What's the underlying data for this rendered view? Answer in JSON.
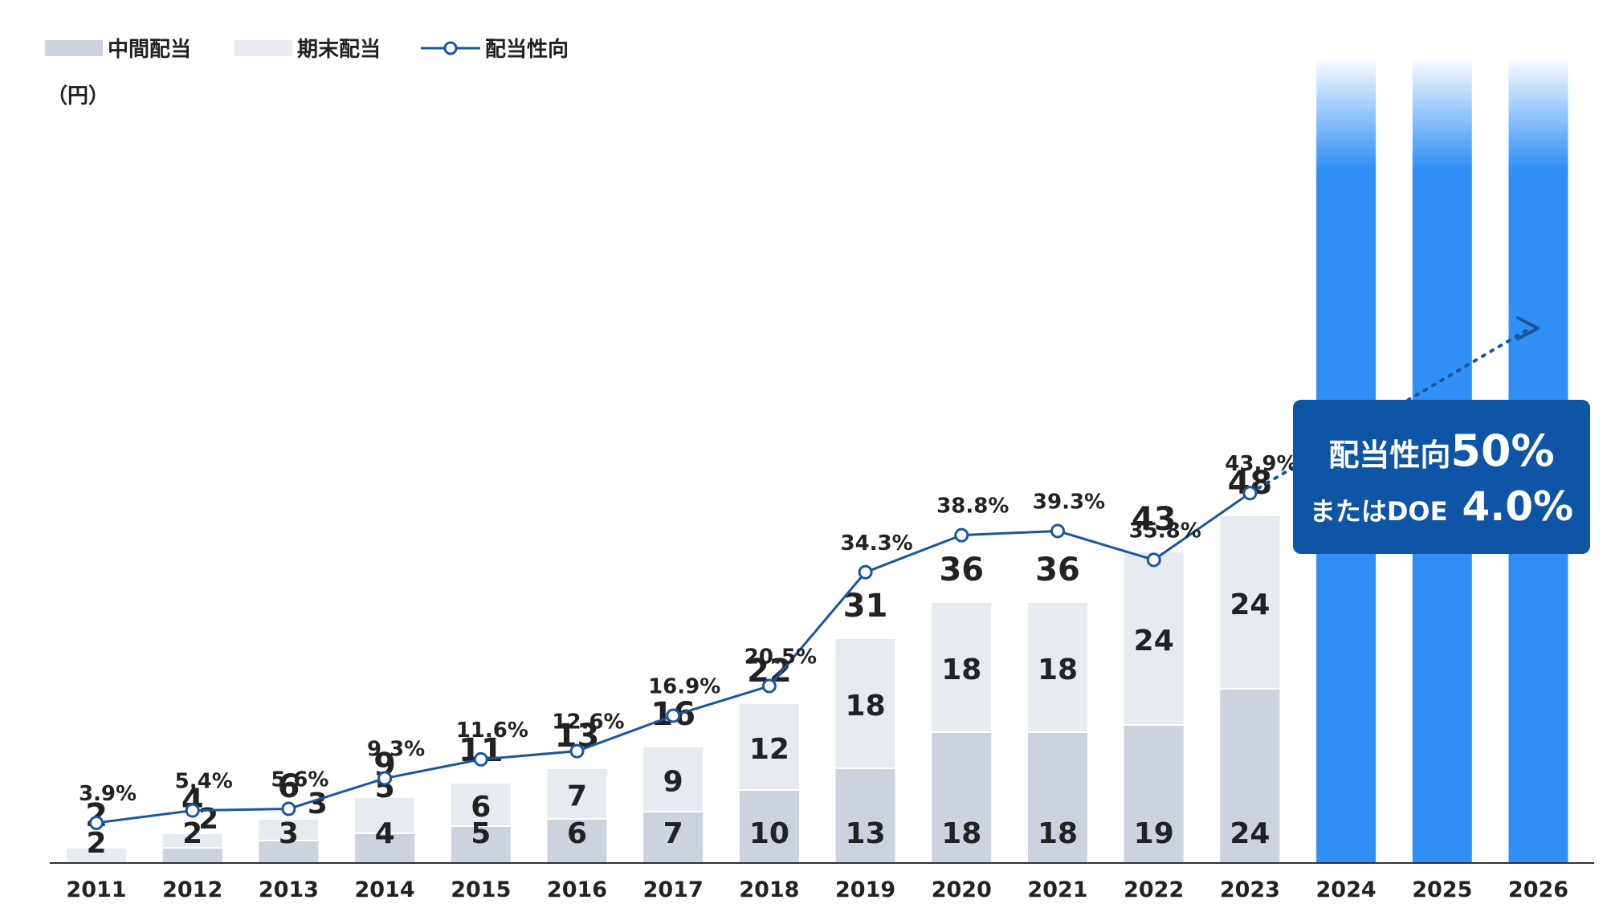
{
  "legend": {
    "interim": "中間配当",
    "final": "期末配当",
    "payout": "配当性向"
  },
  "unit": "（円）",
  "colors": {
    "interim": "#ccd3dd",
    "final": "#e7eaee",
    "payout_line": "#1a56a0",
    "forecast_bar": "#2f8ff5",
    "callout_bg": "#0e55a6",
    "axis": "#333333"
  },
  "callout": {
    "line1_prefix": "配当性向",
    "line1_value": "50%",
    "line2_prefix": "またはDOE",
    "line2_value": "4.0%"
  },
  "chart_data": {
    "type": "bar",
    "stacked": true,
    "categories": [
      "2011",
      "2012",
      "2013",
      "2014",
      "2015",
      "2016",
      "2017",
      "2018",
      "2019",
      "2020",
      "2021",
      "2022",
      "2023",
      "2024",
      "2025",
      "2026"
    ],
    "series": [
      {
        "name": "中間配当",
        "values": [
          0,
          2,
          3,
          4,
          5,
          6,
          7,
          10,
          13,
          18,
          18,
          19,
          24,
          null,
          null,
          null
        ]
      },
      {
        "name": "期末配当",
        "values": [
          2,
          2,
          3,
          5,
          6,
          7,
          9,
          12,
          18,
          18,
          18,
          24,
          24,
          null,
          null,
          null
        ]
      }
    ],
    "segment_labels": {
      "interim": [
        "",
        "2",
        "3",
        "4",
        "5",
        "6",
        "7",
        "10",
        "13",
        "18",
        "18",
        "19",
        "24",
        "",
        "",
        ""
      ],
      "final": [
        "2",
        "2",
        "3",
        "5",
        "6",
        "7",
        "9",
        "12",
        "18",
        "18",
        "18",
        "24",
        "24",
        "",
        "",
        ""
      ]
    },
    "totals": [
      2,
      4,
      6,
      9,
      11,
      13,
      16,
      22,
      31,
      36,
      36,
      43,
      48,
      null,
      null,
      null
    ],
    "payout_ratio": {
      "name": "配当性向",
      "values": [
        3.9,
        5.4,
        5.6,
        9.3,
        11.6,
        12.6,
        16.9,
        20.5,
        34.3,
        38.8,
        39.3,
        35.8,
        43.9
      ],
      "labels": [
        "3.9%",
        "5.4%",
        "5.6%",
        "9.3%",
        "11.6%",
        "12.6%",
        "16.9%",
        "20.5%",
        "34.3%",
        "38.8%",
        "39.3%",
        "35.8%",
        "43.9%"
      ]
    },
    "forecast_categories": [
      "2024",
      "2025",
      "2026"
    ],
    "ylabel": "（円）",
    "ylim": [
      0,
      56
    ]
  }
}
